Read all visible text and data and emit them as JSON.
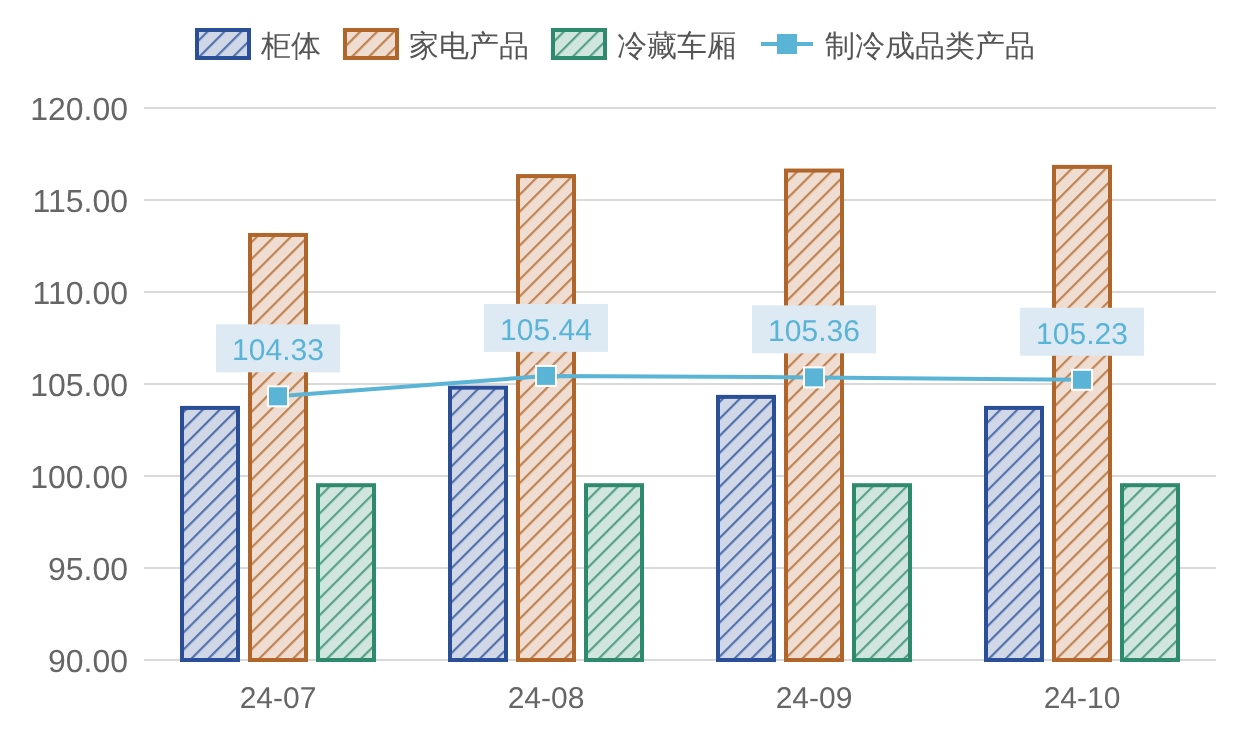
{
  "chart_data": {
    "type": "bar",
    "categories": [
      "24-07",
      "24-08",
      "24-09",
      "24-10"
    ],
    "series": [
      {
        "name": "柜体",
        "color": "#2b4f97",
        "values": [
          103.7,
          104.8,
          104.3,
          103.7
        ]
      },
      {
        "name": "家电产品",
        "color": "#b0652a",
        "values": [
          113.1,
          116.3,
          116.6,
          116.8
        ]
      },
      {
        "name": "冷藏车厢",
        "color": "#2e8a6c",
        "values": [
          99.5,
          99.5,
          99.5,
          99.5
        ]
      },
      {
        "name": "制冷成品类产品",
        "type": "line",
        "color": "#5ab4d6",
        "marker": "square",
        "values": [
          104.33,
          105.44,
          105.36,
          105.23
        ],
        "value_labels": [
          "104.33",
          "105.44",
          "105.36",
          "105.23"
        ]
      }
    ],
    "ylim": [
      90,
      120
    ],
    "yticks": [
      {
        "value": 90,
        "label": "90.00"
      },
      {
        "value": 95,
        "label": "95.00"
      },
      {
        "value": 100,
        "label": "100.00"
      },
      {
        "value": 105,
        "label": "105.00"
      },
      {
        "value": 110,
        "label": "110.00"
      },
      {
        "value": 115,
        "label": "115.00"
      },
      {
        "value": 120,
        "label": "120.00"
      }
    ],
    "grid": "y",
    "legend": "top"
  }
}
